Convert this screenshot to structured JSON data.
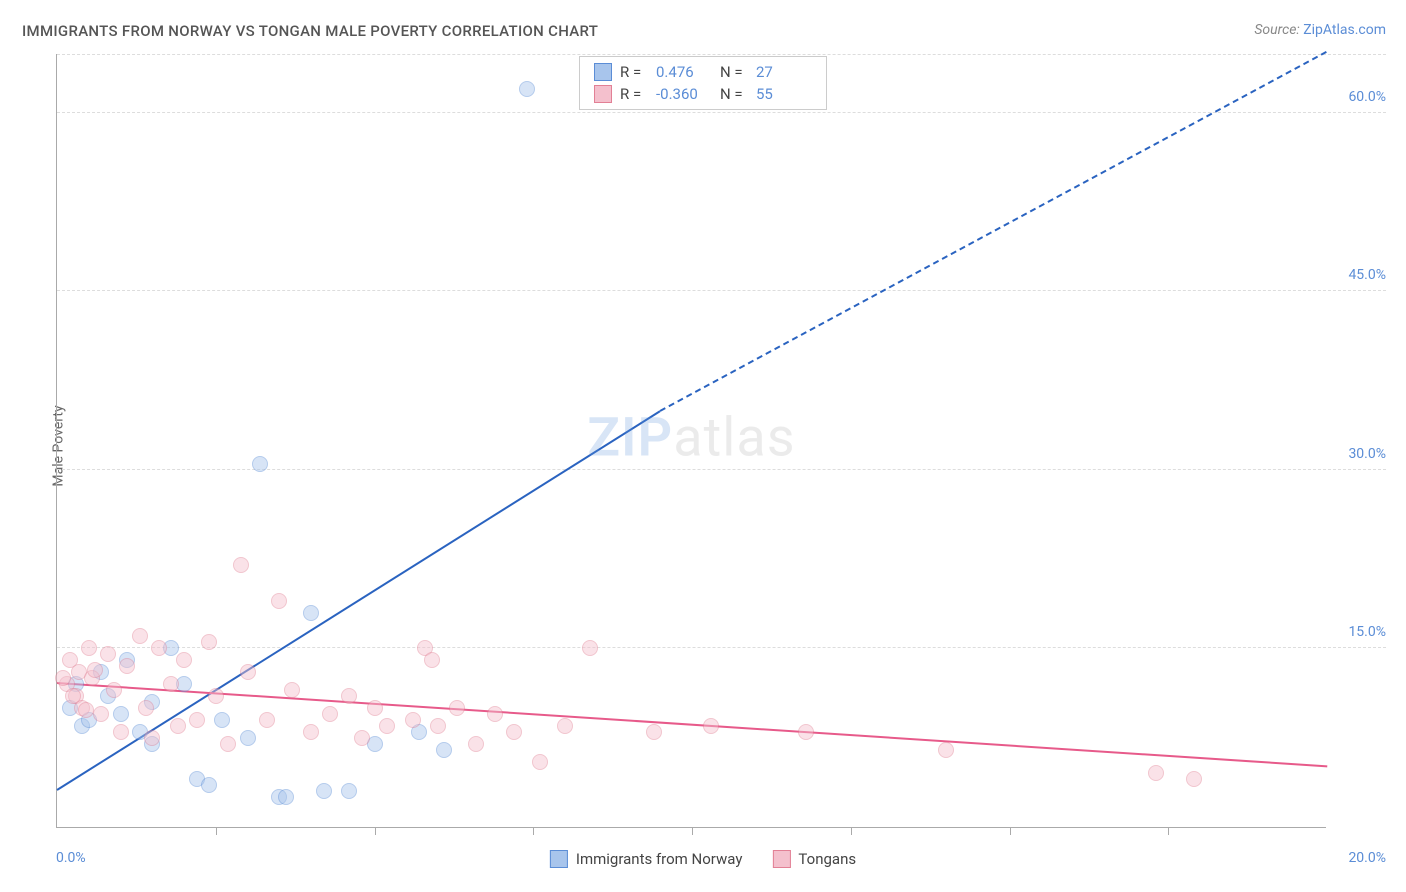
{
  "title": "IMMIGRANTS FROM NORWAY VS TONGAN MALE POVERTY CORRELATION CHART",
  "source_label": "Source: ",
  "source_value": "ZipAtlas.com",
  "y_axis_label": "Male Poverty",
  "watermark_zip": "ZIP",
  "watermark_atlas": "atlas",
  "chart": {
    "type": "scatter-correlation",
    "xlim": [
      0,
      20
    ],
    "ylim": [
      0,
      65
    ],
    "y_ticks": [
      15,
      30,
      45,
      60
    ],
    "y_tick_labels": [
      "15.0%",
      "30.0%",
      "45.0%",
      "60.0%"
    ],
    "x_minor_ticks": [
      2.5,
      5,
      7.5,
      10,
      12.5,
      15,
      17.5
    ],
    "x_tick_label_0": "0.0%",
    "x_tick_label_max": "20.0%",
    "grid_color": "#e0e0e0",
    "axis_color": "#aaaaaa",
    "tick_label_color": "#5b8dd6",
    "background": "#ffffff",
    "marker_radius": 8,
    "marker_opacity": 0.45,
    "series": [
      {
        "name": "Immigrants from Norway",
        "color_fill": "#a8c5ec",
        "color_stroke": "#5b8dd6",
        "r": "0.476",
        "n": "27",
        "trend": {
          "x1": 0,
          "y1": 3,
          "x2": 20,
          "y2": 70,
          "dashed_from_x": 9.5,
          "color": "#2a63c0"
        },
        "points": [
          [
            0.2,
            10
          ],
          [
            0.3,
            12
          ],
          [
            0.4,
            8.5
          ],
          [
            0.5,
            9
          ],
          [
            0.7,
            13
          ],
          [
            0.8,
            11
          ],
          [
            1.0,
            9.5
          ],
          [
            1.1,
            14
          ],
          [
            1.3,
            8
          ],
          [
            1.5,
            7
          ],
          [
            1.5,
            10.5
          ],
          [
            1.8,
            15
          ],
          [
            2.0,
            12
          ],
          [
            2.2,
            4
          ],
          [
            2.4,
            3.5
          ],
          [
            2.6,
            9
          ],
          [
            3.0,
            7.5
          ],
          [
            3.2,
            30.5
          ],
          [
            3.5,
            2.5
          ],
          [
            3.6,
            2.5
          ],
          [
            4.0,
            18
          ],
          [
            4.2,
            3
          ],
          [
            4.6,
            3
          ],
          [
            5.0,
            7
          ],
          [
            5.7,
            8
          ],
          [
            6.1,
            6.5
          ],
          [
            7.4,
            62
          ]
        ]
      },
      {
        "name": "Tongans",
        "color_fill": "#f4c0cd",
        "color_stroke": "#e28095",
        "r": "-0.360",
        "n": "55",
        "trend": {
          "x1": 0,
          "y1": 12,
          "x2": 20,
          "y2": 5,
          "color": "#e75a8a"
        },
        "points": [
          [
            0.15,
            12
          ],
          [
            0.2,
            14
          ],
          [
            0.3,
            11
          ],
          [
            0.35,
            13
          ],
          [
            0.4,
            10
          ],
          [
            0.5,
            15
          ],
          [
            0.55,
            12.5
          ],
          [
            0.7,
            9.5
          ],
          [
            0.8,
            14.5
          ],
          [
            0.9,
            11.5
          ],
          [
            1.0,
            8
          ],
          [
            1.1,
            13.5
          ],
          [
            1.3,
            16
          ],
          [
            1.4,
            10
          ],
          [
            1.5,
            7.5
          ],
          [
            1.6,
            15
          ],
          [
            1.8,
            12
          ],
          [
            1.9,
            8.5
          ],
          [
            2.0,
            14
          ],
          [
            2.2,
            9
          ],
          [
            2.4,
            15.5
          ],
          [
            2.5,
            11
          ],
          [
            2.7,
            7
          ],
          [
            2.9,
            22
          ],
          [
            3.0,
            13
          ],
          [
            3.3,
            9
          ],
          [
            3.5,
            19
          ],
          [
            3.7,
            11.5
          ],
          [
            4.0,
            8
          ],
          [
            4.3,
            9.5
          ],
          [
            4.6,
            11
          ],
          [
            4.8,
            7.5
          ],
          [
            5.0,
            10
          ],
          [
            5.2,
            8.5
          ],
          [
            5.6,
            9
          ],
          [
            5.8,
            15
          ],
          [
            5.9,
            14
          ],
          [
            6.0,
            8.5
          ],
          [
            6.3,
            10
          ],
          [
            6.6,
            7
          ],
          [
            6.9,
            9.5
          ],
          [
            7.2,
            8
          ],
          [
            7.6,
            5.5
          ],
          [
            8.0,
            8.5
          ],
          [
            8.4,
            15
          ],
          [
            9.4,
            8
          ],
          [
            10.3,
            8.5
          ],
          [
            11.8,
            8
          ],
          [
            14.0,
            6.5
          ],
          [
            17.3,
            4.5
          ],
          [
            17.9,
            4
          ],
          [
            0.1,
            12.5
          ],
          [
            0.25,
            11
          ],
          [
            0.45,
            9.8
          ],
          [
            0.6,
            13.2
          ]
        ]
      }
    ]
  },
  "legend_top_labels": {
    "R": "R =",
    "N": "N ="
  },
  "legend_bottom": [
    {
      "label": "Immigrants from Norway",
      "fill": "#a8c5ec",
      "stroke": "#5b8dd6"
    },
    {
      "label": "Tongans",
      "fill": "#f4c0cd",
      "stroke": "#e28095"
    }
  ]
}
